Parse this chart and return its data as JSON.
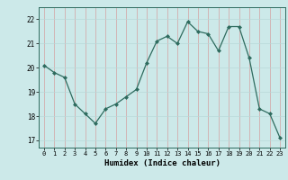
{
  "x": [
    0,
    1,
    2,
    3,
    4,
    5,
    6,
    7,
    8,
    9,
    10,
    11,
    12,
    13,
    14,
    15,
    16,
    17,
    18,
    19,
    20,
    21,
    22,
    23
  ],
  "y": [
    20.1,
    19.8,
    19.6,
    18.5,
    18.1,
    17.7,
    18.3,
    18.5,
    18.8,
    19.1,
    20.2,
    21.1,
    21.3,
    21.0,
    21.9,
    21.5,
    21.4,
    20.7,
    21.7,
    21.7,
    20.4,
    18.3,
    18.1,
    17.1
  ],
  "xlabel": "Humidex (Indice chaleur)",
  "xlim": [
    -0.5,
    23.5
  ],
  "ylim": [
    16.7,
    22.5
  ],
  "yticks": [
    17,
    18,
    19,
    20,
    21,
    22
  ],
  "xticks": [
    0,
    1,
    2,
    3,
    4,
    5,
    6,
    7,
    8,
    9,
    10,
    11,
    12,
    13,
    14,
    15,
    16,
    17,
    18,
    19,
    20,
    21,
    22,
    23
  ],
  "line_color": "#2e6b5e",
  "marker_color": "#2e6b5e",
  "bg_color": "#cce9e9",
  "grid_color": "#b8d8d8",
  "plot_bg": "#cce9e9"
}
